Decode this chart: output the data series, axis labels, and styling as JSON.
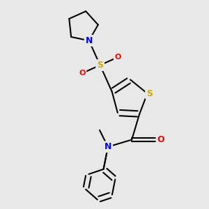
{
  "background_color": "#e8e8e8",
  "atom_colors": {
    "C": "#000000",
    "N": "#0000ff",
    "O": "#ff0000",
    "S_thio": "#ccaa00",
    "S_sul": "#ccaa00"
  },
  "bond_color": "#000000",
  "bond_width": 1.5,
  "font_size_atom": 9
}
